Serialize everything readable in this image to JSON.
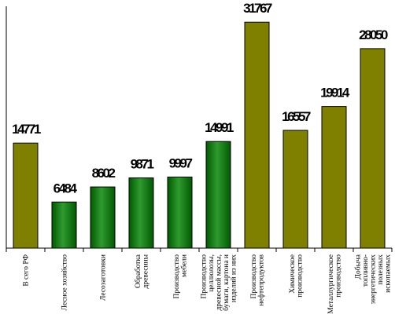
{
  "chart_data": {
    "type": "bar",
    "title": "",
    "xlabel": "",
    "ylabel": "",
    "ylim": [
      0,
      34000
    ],
    "grid": false,
    "legend": "none",
    "colors": {
      "olive": "#808000",
      "green_light": "#2f9a2f",
      "green_dark": "#005a00"
    },
    "categories": [
      [
        "В сего РФ"
      ],
      [
        "Лесное хозяйство"
      ],
      [
        "Лесозаготовки"
      ],
      [
        "Обработка",
        "древесины"
      ],
      [
        "Производство",
        "мебели"
      ],
      [
        "Производство",
        "целлюлозы,",
        "древесной массы,",
        "бумаги, картона и",
        "изделий из них"
      ],
      [
        "Производство",
        "нефтепродуктов"
      ],
      [
        "Химическое",
        "производство"
      ],
      [
        "Металлургическое",
        "производство"
      ],
      [
        "Добыча",
        "топливно-",
        "энергетических",
        "полезных",
        "ископаемых"
      ]
    ],
    "values": [
      14771,
      6484,
      8602,
      9871,
      9997,
      14991,
      31767,
      16557,
      19914,
      28050
    ],
    "value_labels": [
      "14771",
      "6484",
      "8602",
      "9871",
      "9997",
      "14991",
      "31767",
      "16557",
      "19914",
      "28050"
    ],
    "bar_styles": [
      "olive",
      "green",
      "green",
      "green",
      "green",
      "green",
      "olive",
      "olive",
      "olive",
      "olive"
    ]
  }
}
